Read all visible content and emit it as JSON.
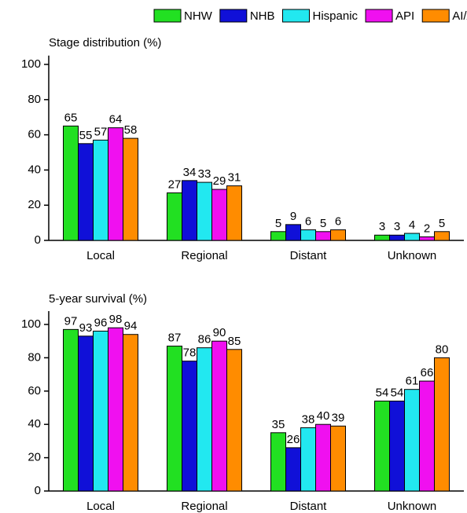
{
  "chart_data": [
    {
      "type": "bar",
      "title": "Stage distribution (%)",
      "categories": [
        "Local",
        "Regional",
        "Distant",
        "Unknown"
      ],
      "series": [
        {
          "name": "NHW",
          "color": "#22e022",
          "values": [
            65,
            27,
            5,
            3
          ]
        },
        {
          "name": "NHB",
          "color": "#1010d8",
          "values": [
            55,
            34,
            9,
            3
          ]
        },
        {
          "name": "Hispanic",
          "color": "#22e8f0",
          "values": [
            57,
            33,
            6,
            4
          ]
        },
        {
          "name": "API",
          "color": "#f010f0",
          "values": [
            64,
            29,
            5,
            2
          ]
        },
        {
          "name": "AI/AN",
          "color": "#ff8c00",
          "values": [
            58,
            31,
            6,
            5
          ]
        }
      ],
      "ylim": [
        0,
        105
      ],
      "yticks": [
        0,
        20,
        40,
        60,
        80,
        100
      ]
    },
    {
      "type": "bar",
      "title": "5-year survival (%)",
      "categories": [
        "Local",
        "Regional",
        "Distant",
        "Unknown"
      ],
      "series": [
        {
          "values": [
            97,
            87,
            35,
            54
          ]
        },
        {
          "values": [
            93,
            78,
            26,
            54
          ]
        },
        {
          "values": [
            96,
            86,
            38,
            61
          ]
        },
        {
          "values": [
            98,
            90,
            40,
            66
          ]
        },
        {
          "values": [
            94,
            85,
            39,
            80
          ]
        }
      ],
      "ylim": [
        0,
        108
      ],
      "yticks": [
        0,
        20,
        40,
        60,
        80,
        100
      ]
    }
  ]
}
